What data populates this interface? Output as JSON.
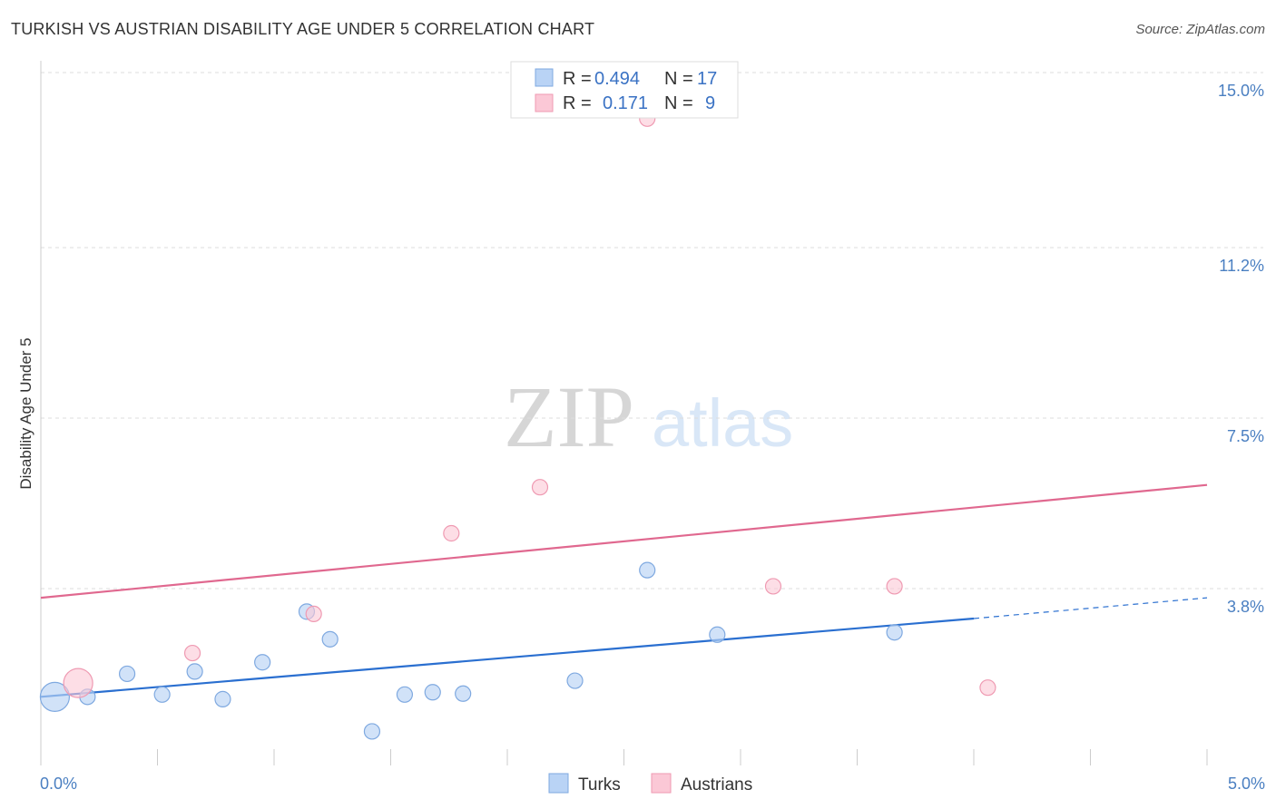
{
  "header": {
    "title": "TURKISH VS AUSTRIAN DISABILITY AGE UNDER 5 CORRELATION CHART",
    "source": "Source: ZipAtlas.com"
  },
  "watermark": {
    "zip": "ZIP",
    "atlas": "atlas"
  },
  "chart_data": {
    "type": "scatter",
    "title": "TURKISH VS AUSTRIAN DISABILITY AGE UNDER 5 CORRELATION CHART",
    "xlabel": "",
    "ylabel": "Disability Age Under 5",
    "xlim": [
      0,
      5
    ],
    "ylim": [
      0,
      15
    ],
    "x_tick_labels": [
      "0.0%",
      "5.0%"
    ],
    "y_ticks": [
      3.8,
      7.5,
      11.2,
      15.0
    ],
    "y_tick_labels": [
      "3.8%",
      "7.5%",
      "11.2%",
      "15.0%"
    ],
    "grid": true,
    "legend_position": "top-center",
    "colors": {
      "turks": "#6fa8e8",
      "austrians": "#f4a0b8",
      "turks_line": "#2a6fd0",
      "austrians_line": "#e0688f"
    },
    "series": [
      {
        "name": "Turks",
        "r_label": "R =",
        "r_value": "0.494",
        "n_label": "N =",
        "n_value": "17",
        "points": [
          {
            "x": 0.06,
            "y": 1.45,
            "big": true
          },
          {
            "x": 0.2,
            "y": 1.45
          },
          {
            "x": 0.37,
            "y": 1.95
          },
          {
            "x": 0.52,
            "y": 1.5
          },
          {
            "x": 0.66,
            "y": 2.0
          },
          {
            "x": 0.78,
            "y": 1.4
          },
          {
            "x": 0.95,
            "y": 2.2
          },
          {
            "x": 1.14,
            "y": 3.3
          },
          {
            "x": 1.24,
            "y": 2.7
          },
          {
            "x": 1.42,
            "y": 0.7
          },
          {
            "x": 1.56,
            "y": 1.5
          },
          {
            "x": 1.68,
            "y": 1.55
          },
          {
            "x": 1.81,
            "y": 1.52
          },
          {
            "x": 2.29,
            "y": 1.8
          },
          {
            "x": 2.6,
            "y": 4.2
          },
          {
            "x": 2.9,
            "y": 2.8
          },
          {
            "x": 3.66,
            "y": 2.85
          }
        ],
        "trend": {
          "x1": 0.0,
          "y1": 1.45,
          "x2": 4.0,
          "y2": 3.15,
          "dash_to_x": 5.0,
          "dash_to_y": 3.6
        }
      },
      {
        "name": "Austrians",
        "r_label": "R =",
        "r_value": "0.171",
        "n_label": "N =",
        "n_value": "9",
        "points": [
          {
            "x": 0.16,
            "y": 1.75,
            "big": true
          },
          {
            "x": 0.65,
            "y": 2.4
          },
          {
            "x": 1.17,
            "y": 3.25
          },
          {
            "x": 1.76,
            "y": 5.0
          },
          {
            "x": 2.14,
            "y": 6.0
          },
          {
            "x": 2.6,
            "y": 14.0
          },
          {
            "x": 3.14,
            "y": 3.85
          },
          {
            "x": 3.66,
            "y": 3.85
          },
          {
            "x": 4.06,
            "y": 1.65
          }
        ],
        "trend": {
          "x1": 0.0,
          "y1": 3.6,
          "x2": 5.0,
          "y2": 6.05
        }
      }
    ]
  }
}
